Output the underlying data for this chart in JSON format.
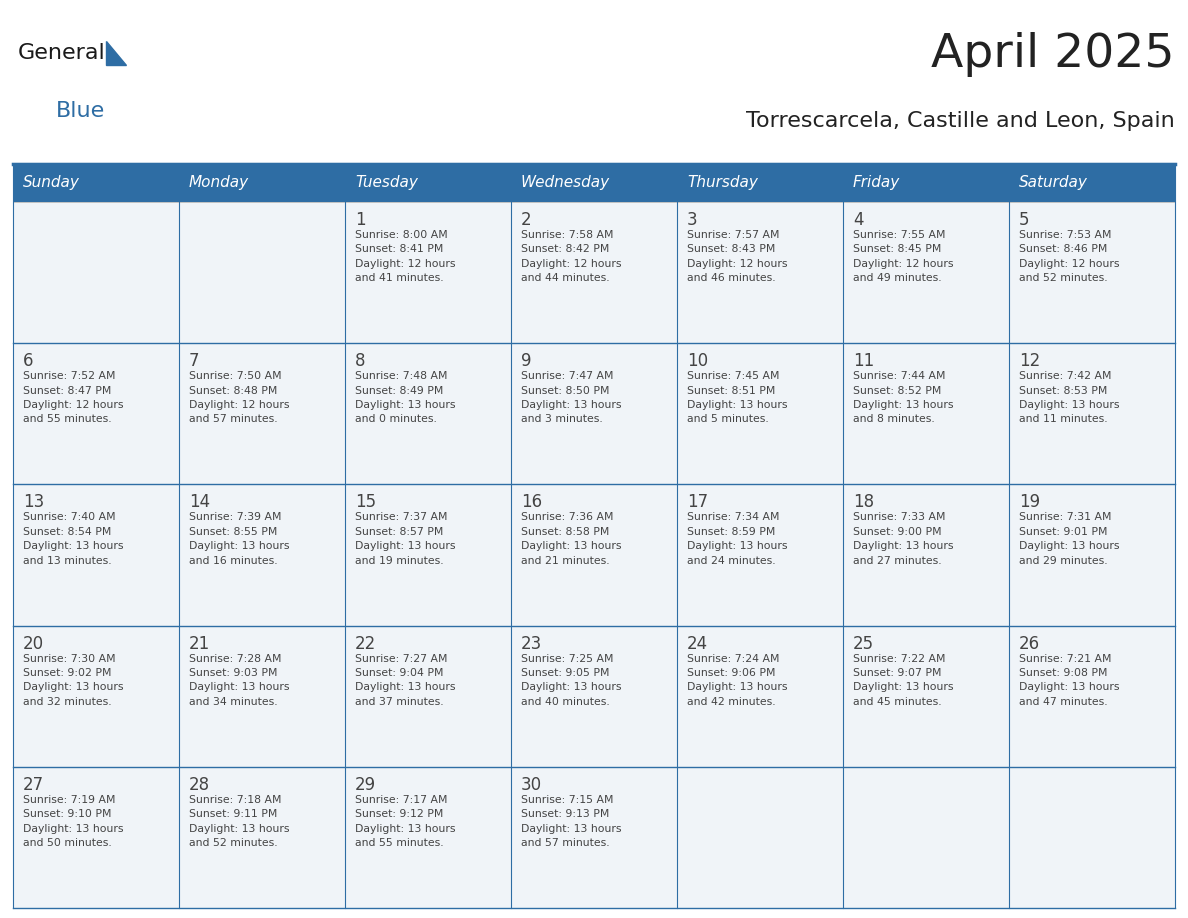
{
  "title": "April 2025",
  "subtitle": "Torrescarcela, Castille and Leon, Spain",
  "days_of_week": [
    "Sunday",
    "Monday",
    "Tuesday",
    "Wednesday",
    "Thursday",
    "Friday",
    "Saturday"
  ],
  "header_bg": "#2e6da4",
  "header_text": "#ffffff",
  "cell_bg": "#f0f4f8",
  "border_color": "#2e6da4",
  "cell_border_color": "#aaaaaa",
  "text_color": "#444444",
  "title_color": "#222222",
  "logo_general_color": "#1a1a1a",
  "logo_blue_color": "#2e6da4",
  "fig_width": 11.88,
  "fig_height": 9.18,
  "calendar_data": [
    [
      {
        "day": "",
        "info": ""
      },
      {
        "day": "",
        "info": ""
      },
      {
        "day": "1",
        "info": "Sunrise: 8:00 AM\nSunset: 8:41 PM\nDaylight: 12 hours\nand 41 minutes."
      },
      {
        "day": "2",
        "info": "Sunrise: 7:58 AM\nSunset: 8:42 PM\nDaylight: 12 hours\nand 44 minutes."
      },
      {
        "day": "3",
        "info": "Sunrise: 7:57 AM\nSunset: 8:43 PM\nDaylight: 12 hours\nand 46 minutes."
      },
      {
        "day": "4",
        "info": "Sunrise: 7:55 AM\nSunset: 8:45 PM\nDaylight: 12 hours\nand 49 minutes."
      },
      {
        "day": "5",
        "info": "Sunrise: 7:53 AM\nSunset: 8:46 PM\nDaylight: 12 hours\nand 52 minutes."
      }
    ],
    [
      {
        "day": "6",
        "info": "Sunrise: 7:52 AM\nSunset: 8:47 PM\nDaylight: 12 hours\nand 55 minutes."
      },
      {
        "day": "7",
        "info": "Sunrise: 7:50 AM\nSunset: 8:48 PM\nDaylight: 12 hours\nand 57 minutes."
      },
      {
        "day": "8",
        "info": "Sunrise: 7:48 AM\nSunset: 8:49 PM\nDaylight: 13 hours\nand 0 minutes."
      },
      {
        "day": "9",
        "info": "Sunrise: 7:47 AM\nSunset: 8:50 PM\nDaylight: 13 hours\nand 3 minutes."
      },
      {
        "day": "10",
        "info": "Sunrise: 7:45 AM\nSunset: 8:51 PM\nDaylight: 13 hours\nand 5 minutes."
      },
      {
        "day": "11",
        "info": "Sunrise: 7:44 AM\nSunset: 8:52 PM\nDaylight: 13 hours\nand 8 minutes."
      },
      {
        "day": "12",
        "info": "Sunrise: 7:42 AM\nSunset: 8:53 PM\nDaylight: 13 hours\nand 11 minutes."
      }
    ],
    [
      {
        "day": "13",
        "info": "Sunrise: 7:40 AM\nSunset: 8:54 PM\nDaylight: 13 hours\nand 13 minutes."
      },
      {
        "day": "14",
        "info": "Sunrise: 7:39 AM\nSunset: 8:55 PM\nDaylight: 13 hours\nand 16 minutes."
      },
      {
        "day": "15",
        "info": "Sunrise: 7:37 AM\nSunset: 8:57 PM\nDaylight: 13 hours\nand 19 minutes."
      },
      {
        "day": "16",
        "info": "Sunrise: 7:36 AM\nSunset: 8:58 PM\nDaylight: 13 hours\nand 21 minutes."
      },
      {
        "day": "17",
        "info": "Sunrise: 7:34 AM\nSunset: 8:59 PM\nDaylight: 13 hours\nand 24 minutes."
      },
      {
        "day": "18",
        "info": "Sunrise: 7:33 AM\nSunset: 9:00 PM\nDaylight: 13 hours\nand 27 minutes."
      },
      {
        "day": "19",
        "info": "Sunrise: 7:31 AM\nSunset: 9:01 PM\nDaylight: 13 hours\nand 29 minutes."
      }
    ],
    [
      {
        "day": "20",
        "info": "Sunrise: 7:30 AM\nSunset: 9:02 PM\nDaylight: 13 hours\nand 32 minutes."
      },
      {
        "day": "21",
        "info": "Sunrise: 7:28 AM\nSunset: 9:03 PM\nDaylight: 13 hours\nand 34 minutes."
      },
      {
        "day": "22",
        "info": "Sunrise: 7:27 AM\nSunset: 9:04 PM\nDaylight: 13 hours\nand 37 minutes."
      },
      {
        "day": "23",
        "info": "Sunrise: 7:25 AM\nSunset: 9:05 PM\nDaylight: 13 hours\nand 40 minutes."
      },
      {
        "day": "24",
        "info": "Sunrise: 7:24 AM\nSunset: 9:06 PM\nDaylight: 13 hours\nand 42 minutes."
      },
      {
        "day": "25",
        "info": "Sunrise: 7:22 AM\nSunset: 9:07 PM\nDaylight: 13 hours\nand 45 minutes."
      },
      {
        "day": "26",
        "info": "Sunrise: 7:21 AM\nSunset: 9:08 PM\nDaylight: 13 hours\nand 47 minutes."
      }
    ],
    [
      {
        "day": "27",
        "info": "Sunrise: 7:19 AM\nSunset: 9:10 PM\nDaylight: 13 hours\nand 50 minutes."
      },
      {
        "day": "28",
        "info": "Sunrise: 7:18 AM\nSunset: 9:11 PM\nDaylight: 13 hours\nand 52 minutes."
      },
      {
        "day": "29",
        "info": "Sunrise: 7:17 AM\nSunset: 9:12 PM\nDaylight: 13 hours\nand 55 minutes."
      },
      {
        "day": "30",
        "info": "Sunrise: 7:15 AM\nSunset: 9:13 PM\nDaylight: 13 hours\nand 57 minutes."
      },
      {
        "day": "",
        "info": ""
      },
      {
        "day": "",
        "info": ""
      },
      {
        "day": "",
        "info": ""
      }
    ]
  ]
}
